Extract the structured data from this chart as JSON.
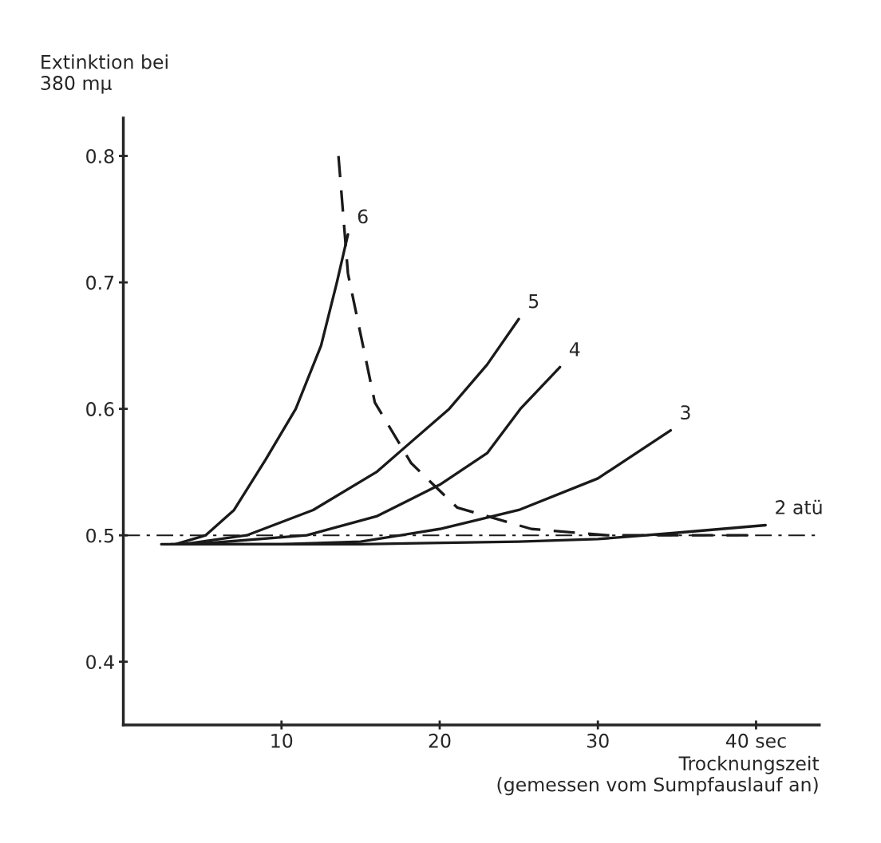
{
  "chart_data": {
    "type": "line",
    "xlabel": "Trocknungszeit\n(gemessen vom Sumpfauslauf an)",
    "ylabel": "Extinktion bei\n380 mμ",
    "xlim": [
      0,
      44
    ],
    "ylim": [
      0.35,
      0.83
    ],
    "xticks": [
      10,
      20,
      30,
      {
        "value": 40,
        "label": "40 sec"
      }
    ],
    "yticks": [
      0.4,
      0.5,
      0.6,
      0.7,
      0.8
    ],
    "grid": false,
    "legend": false,
    "marker": "none",
    "series": [
      {
        "name": "6",
        "color": "#1a1a1a",
        "x": [
          3.3,
          5.2,
          7,
          9,
          10.9,
          12.5,
          13.5,
          14.2
        ],
        "values": [
          0.493,
          0.5,
          0.52,
          0.56,
          0.6,
          0.65,
          0.7,
          0.738
        ]
      },
      {
        "name": "5",
        "color": "#1a1a1a",
        "x": [
          3.8,
          7.8,
          12,
          16,
          20.6,
          23,
          25
        ],
        "values": [
          0.493,
          0.5,
          0.52,
          0.55,
          0.6,
          0.635,
          0.671
        ]
      },
      {
        "name": "4",
        "color": "#1a1a1a",
        "x": [
          4.5,
          11.6,
          16,
          20,
          23,
          25.1,
          27.6
        ],
        "values": [
          0.493,
          0.5,
          0.515,
          0.54,
          0.565,
          0.6,
          0.633
        ]
      },
      {
        "name": "3",
        "color": "#1a1a1a",
        "x": [
          3,
          10,
          15,
          20,
          25,
          30,
          34.6
        ],
        "values": [
          0.493,
          0.493,
          0.495,
          0.505,
          0.52,
          0.545,
          0.583
        ]
      },
      {
        "name": "2 atü",
        "color": "#1a1a1a",
        "x": [
          2.4,
          15,
          25,
          30,
          35,
          40.6
        ],
        "values": [
          0.493,
          0.493,
          0.495,
          0.497,
          0.502,
          0.508
        ]
      },
      {
        "color": "#1a1a1a",
        "line_style": "dashed",
        "x": [
          13.6,
          14.2,
          15.9,
          18.2,
          21.1,
          25.8,
          30.6,
          40
        ],
        "values": [
          0.8,
          0.707,
          0.605,
          0.557,
          0.522,
          0.505,
          0.5,
          0.5
        ]
      }
    ],
    "ref_lines": [
      {
        "axis": "y",
        "value": 0.5,
        "line_style": "dashdot",
        "color": "#1a1a1a"
      }
    ]
  }
}
